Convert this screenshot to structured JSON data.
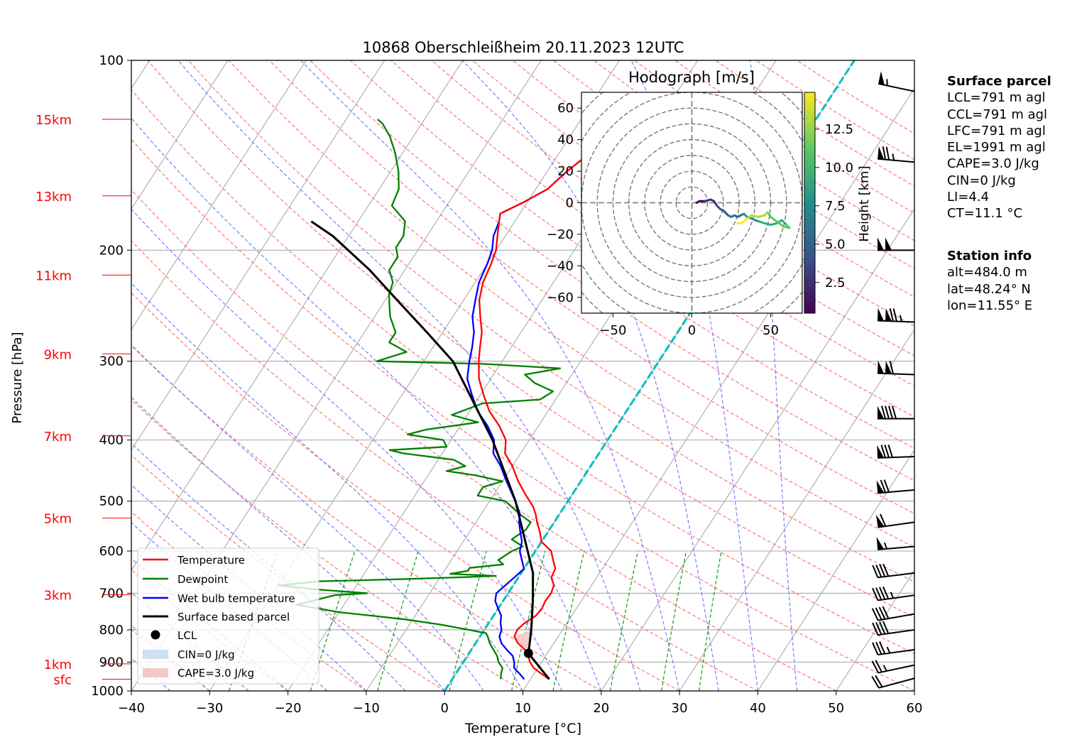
{
  "title": "10868 Oberschleißheim 20.11.2023 12UTC",
  "chart_data": {
    "type": "line",
    "subtype": "skew-T log-p diagram",
    "xlabel": "Temperature [°C]",
    "ylabel": "Pressure [hPa]",
    "xlim": [
      -40,
      60
    ],
    "ylim": [
      1000,
      100
    ],
    "y_scale": "log",
    "x_ticks": [
      -40,
      -30,
      -20,
      -10,
      0,
      10,
      20,
      30,
      40,
      50,
      60
    ],
    "y_ticks": [
      100,
      200,
      300,
      400,
      500,
      600,
      700,
      800,
      900,
      1000
    ],
    "grid": true,
    "legend_position": "lower-left",
    "height_labels": [
      {
        "label": "15km",
        "pressure": 124
      },
      {
        "label": "13km",
        "pressure": 164
      },
      {
        "label": "11km",
        "pressure": 219
      },
      {
        "label": "9km",
        "pressure": 292
      },
      {
        "label": "7km",
        "pressure": 394
      },
      {
        "label": "5km",
        "pressure": 532
      },
      {
        "label": "3km",
        "pressure": 704
      },
      {
        "label": "1km",
        "pressure": 906
      },
      {
        "label": "sfc",
        "pressure": 958
      }
    ],
    "series": [
      {
        "name": "Temperature",
        "color": "#ff0000",
        "points": [
          [
            12.4,
            958
          ],
          [
            11,
            940
          ],
          [
            9.5,
            920
          ],
          [
            8.5,
            900
          ],
          [
            7.8,
            880
          ],
          [
            6.8,
            860
          ],
          [
            5.4,
            840
          ],
          [
            4.4,
            820
          ],
          [
            4.2,
            800
          ],
          [
            4.6,
            780
          ],
          [
            5.4,
            760
          ],
          [
            5.6,
            740
          ],
          [
            5.4,
            720
          ],
          [
            5.5,
            700
          ],
          [
            5.2,
            680
          ],
          [
            4.2,
            660
          ],
          [
            4.0,
            640
          ],
          [
            3.0,
            620
          ],
          [
            2.0,
            600
          ],
          [
            0,
            580
          ],
          [
            -1,
            560
          ],
          [
            -2.2,
            540
          ],
          [
            -3,
            525
          ],
          [
            -4,
            510
          ],
          [
            -5.8,
            490
          ],
          [
            -8,
            465
          ],
          [
            -10,
            440
          ],
          [
            -12,
            420
          ],
          [
            -13,
            400
          ],
          [
            -15,
            380
          ],
          [
            -17.5,
            360
          ],
          [
            -19.5,
            340
          ],
          [
            -21.5,
            320
          ],
          [
            -23,
            300
          ],
          [
            -24,
            285
          ],
          [
            -25,
            270
          ],
          [
            -26.5,
            255
          ],
          [
            -28,
            240
          ],
          [
            -29,
            225
          ],
          [
            -29.5,
            210
          ],
          [
            -30,
            200
          ],
          [
            -31,
            190
          ],
          [
            -32,
            180
          ],
          [
            -32.5,
            175
          ],
          [
            -30.5,
            168
          ],
          [
            -28.5,
            160
          ],
          [
            -27.5,
            150
          ],
          [
            -26,
            140
          ],
          [
            -24,
            132
          ],
          [
            -21.5,
            128
          ],
          [
            -20,
            125
          ],
          [
            -18.5,
            122
          ],
          [
            -18,
            121
          ]
        ]
      },
      {
        "name": "Dewpoint",
        "color": "#008000",
        "points": [
          [
            6.2,
            958
          ],
          [
            5.8,
            940
          ],
          [
            5.5,
            920
          ],
          [
            4.5,
            900
          ],
          [
            3.8,
            880
          ],
          [
            2.8,
            860
          ],
          [
            1.8,
            840
          ],
          [
            1.0,
            820
          ],
          [
            0.5,
            810
          ],
          [
            -2,
            800
          ],
          [
            -6,
            785
          ],
          [
            -11,
            770
          ],
          [
            -20,
            750
          ],
          [
            -26,
            730
          ],
          [
            -22,
            705
          ],
          [
            -18,
            700
          ],
          [
            -25,
            690
          ],
          [
            -30,
            680
          ],
          [
            -25,
            670
          ],
          [
            -15,
            665
          ],
          [
            -7,
            660
          ],
          [
            -3,
            657
          ],
          [
            -9,
            652
          ],
          [
            -7,
            645
          ],
          [
            -7,
            638
          ],
          [
            -3,
            630
          ],
          [
            -4,
            620
          ],
          [
            -3,
            600
          ],
          [
            -2,
            590
          ],
          [
            -4,
            575
          ],
          [
            -3,
            555
          ],
          [
            -3,
            540
          ],
          [
            -5,
            525
          ],
          [
            -8,
            500
          ],
          [
            -12,
            490
          ],
          [
            -12,
            475
          ],
          [
            -10,
            465
          ],
          [
            -14,
            455
          ],
          [
            -18,
            448
          ],
          [
            -16,
            440
          ],
          [
            -18,
            430
          ],
          [
            -25,
            420
          ],
          [
            -27,
            415
          ],
          [
            -20,
            410
          ],
          [
            -21,
            400
          ],
          [
            -26,
            392
          ],
          [
            -24,
            385
          ],
          [
            -18,
            375
          ],
          [
            -22,
            365
          ],
          [
            -19,
            350
          ],
          [
            -12,
            345
          ],
          [
            -11,
            335
          ],
          [
            -14,
            325
          ],
          [
            -16,
            315
          ],
          [
            -12,
            308
          ],
          [
            -22,
            303
          ],
          [
            -36,
            300
          ],
          [
            -33,
            290
          ],
          [
            -36,
            280
          ],
          [
            -36,
            270
          ],
          [
            -38,
            255
          ],
          [
            -39,
            245
          ],
          [
            -40,
            235
          ],
          [
            -40.5,
            225
          ],
          [
            -42,
            215
          ],
          [
            -42,
            205
          ],
          [
            -43,
            198
          ],
          [
            -43,
            190
          ],
          [
            -44,
            180
          ],
          [
            -47,
            170
          ],
          [
            -47.5,
            160
          ],
          [
            -49,
            150
          ],
          [
            -51,
            140
          ],
          [
            -53,
            132
          ],
          [
            -55,
            126
          ],
          [
            -56,
            124
          ]
        ]
      },
      {
        "name": "Wet bulb temperature",
        "color": "#0000ff",
        "points": [
          [
            9.2,
            958
          ],
          [
            8.2,
            940
          ],
          [
            7.0,
            920
          ],
          [
            6.5,
            900
          ],
          [
            5.8,
            880
          ],
          [
            4.5,
            860
          ],
          [
            3.3,
            840
          ],
          [
            2.5,
            820
          ],
          [
            2.2,
            800
          ],
          [
            1.5,
            780
          ],
          [
            1.0,
            760
          ],
          [
            0.0,
            740
          ],
          [
            -1.0,
            720
          ],
          [
            -1.5,
            700
          ],
          [
            -1.0,
            680
          ],
          [
            -0.5,
            660
          ],
          [
            0,
            640
          ],
          [
            -1,
            620
          ],
          [
            -2,
            600
          ],
          [
            -2.5,
            580
          ],
          [
            -3.5,
            560
          ],
          [
            -4.5,
            540
          ],
          [
            -5.0,
            525
          ],
          [
            -6.0,
            510
          ],
          [
            -7.5,
            490
          ],
          [
            -9.5,
            465
          ],
          [
            -11.5,
            440
          ],
          [
            -13.5,
            420
          ],
          [
            -14.5,
            400
          ],
          [
            -16.5,
            380
          ],
          [
            -19,
            360
          ],
          [
            -21,
            340
          ],
          [
            -23,
            320
          ],
          [
            -24.2,
            300
          ],
          [
            -25,
            285
          ],
          [
            -26,
            270
          ],
          [
            -27.5,
            255
          ],
          [
            -28.5,
            240
          ],
          [
            -29.5,
            225
          ],
          [
            -30,
            210
          ],
          [
            -30.5,
            200
          ],
          [
            -31.5,
            190
          ],
          [
            -32,
            180
          ],
          [
            -32.5,
            175
          ],
          [
            -30.5,
            168
          ],
          [
            -28.5,
            160
          ],
          [
            -27.5,
            150
          ],
          [
            -26,
            140
          ],
          [
            -24,
            132
          ],
          [
            -21.5,
            128
          ],
          [
            -20,
            125
          ],
          [
            -18.5,
            122
          ],
          [
            -18,
            121
          ]
        ]
      },
      {
        "name": "Surface based parcel",
        "color": "#000000",
        "points": [
          [
            12.4,
            958
          ],
          [
            7.6,
            872
          ],
          [
            6.0,
            800
          ],
          [
            3.8,
            720
          ],
          [
            1.5,
            650
          ],
          [
            -1.0,
            600
          ],
          [
            -6.7,
            500
          ],
          [
            -14.7,
            400
          ],
          [
            -26.3,
            300
          ],
          [
            -32,
            270
          ],
          [
            -38.5,
            240
          ],
          [
            -44.5,
            215
          ],
          [
            -52,
            190
          ],
          [
            -56,
            180
          ]
        ]
      }
    ],
    "lcl": {
      "label": "LCL",
      "temperature": 7.6,
      "pressure": 872
    },
    "cin_label": "CIN=0 J/kg",
    "cape_label": "CAPE=3.0 J/kg",
    "wind_barbs": [
      {
        "pressure": 955,
        "speed_kt": 20,
        "dir": 255
      },
      {
        "pressure": 910,
        "speed_kt": 25,
        "dir": 258
      },
      {
        "pressure": 860,
        "speed_kt": 35,
        "dir": 262
      },
      {
        "pressure": 800,
        "speed_kt": 40,
        "dir": 262
      },
      {
        "pressure": 755,
        "speed_kt": 40,
        "dir": 260
      },
      {
        "pressure": 705,
        "speed_kt": 45,
        "dir": 262
      },
      {
        "pressure": 650,
        "speed_kt": 40,
        "dir": 263
      },
      {
        "pressure": 590,
        "speed_kt": 55,
        "dir": 265
      },
      {
        "pressure": 540,
        "speed_kt": 60,
        "dir": 262
      },
      {
        "pressure": 480,
        "speed_kt": 70,
        "dir": 265
      },
      {
        "pressure": 425,
        "speed_kt": 80,
        "dir": 268
      },
      {
        "pressure": 370,
        "speed_kt": 90,
        "dir": 270
      },
      {
        "pressure": 315,
        "speed_kt": 110,
        "dir": 272
      },
      {
        "pressure": 260,
        "speed_kt": 125,
        "dir": 272
      },
      {
        "pressure": 200,
        "speed_kt": 100,
        "dir": 270
      },
      {
        "pressure": 145,
        "speed_kt": 75,
        "dir": 275
      },
      {
        "pressure": 112,
        "speed_kt": 55,
        "dir": 282
      }
    ],
    "hodograph": {
      "title": "Hodograph [m/s]",
      "xlim": [
        -70,
        70
      ],
      "ylim": [
        -70,
        70
      ],
      "ticks": [
        -50,
        0,
        50
      ],
      "y_ticks": [
        -60,
        -40,
        -20,
        0,
        20,
        40,
        60
      ],
      "ring_step": 10,
      "colorbar_label": "Height [km]",
      "colorbar_ticks": [
        2.5,
        5.0,
        7.5,
        10.0,
        12.5
      ],
      "colorbar_ticklabels": [
        "2.5",
        "5.0",
        "7.5",
        "10.0",
        "12.5"
      ],
      "colorbar_range": [
        0.5,
        14.9
      ],
      "points": [
        [
          3,
          0,
          0.5
        ],
        [
          5,
          1,
          0.9
        ],
        [
          8,
          1,
          1.4
        ],
        [
          10,
          1.5,
          1.8
        ],
        [
          12,
          2,
          2.2
        ],
        [
          14,
          1,
          2.6
        ],
        [
          16,
          -2,
          3.0
        ],
        [
          18,
          -4,
          3.4
        ],
        [
          20,
          -5,
          3.8
        ],
        [
          21,
          -6,
          4.2
        ],
        [
          23,
          -8,
          4.6
        ],
        [
          25,
          -9,
          5.0
        ],
        [
          27,
          -8,
          5.4
        ],
        [
          29,
          -9,
          5.8
        ],
        [
          31,
          -8,
          6.2
        ],
        [
          33,
          -7,
          6.6
        ],
        [
          35,
          -9,
          7.0
        ],
        [
          38,
          -10,
          7.4
        ],
        [
          40,
          -11,
          7.8
        ],
        [
          43,
          -12,
          8.2
        ],
        [
          46,
          -13,
          8.6
        ],
        [
          50,
          -14,
          9.0
        ],
        [
          54,
          -13,
          9.4
        ],
        [
          57,
          -11,
          9.8
        ],
        [
          60,
          -14,
          10.2
        ],
        [
          62,
          -16,
          10.6
        ],
        [
          58,
          -15,
          11.0
        ],
        [
          54,
          -12,
          11.4
        ],
        [
          50,
          -9,
          11.8
        ],
        [
          48,
          -6,
          12.2
        ],
        [
          46,
          -8,
          12.6
        ],
        [
          42,
          -9,
          13.0
        ],
        [
          38,
          -8,
          13.4
        ],
        [
          35,
          -10,
          13.8
        ],
        [
          33,
          -12,
          14.2
        ],
        [
          31,
          -13,
          14.6
        ],
        [
          29,
          -13,
          14.9
        ]
      ]
    }
  },
  "surface_parcel": {
    "header": "Surface parcel",
    "lines": [
      "LCL=791 m agl",
      "CCL=791 m agl",
      "LFC=791 m agl",
      "EL=1991 m agl",
      "CAPE=3.0 J/kg",
      "CIN=0 J/kg",
      "LI=4.4",
      "CT=11.1 °C"
    ]
  },
  "station_info": {
    "header": "Station info",
    "lines": [
      "alt=484.0 m",
      "lat=48.24° N",
      "lon=11.55° E"
    ]
  },
  "colors": {
    "temperature": "#ff0000",
    "dewpoint": "#008000",
    "wetbulb": "#0000ff",
    "parcel": "#000000",
    "dry_adiabat": "#ff6b6b",
    "moist_adiabat": "#7070ff",
    "mixing_ratio": "#2a9d2a",
    "isotherm": "#aaaaaa",
    "zero_isotherm": "#00bfbf",
    "height_label": "#ff0000",
    "cin": "#cfe0f0",
    "cape": "#f4c8c8"
  }
}
